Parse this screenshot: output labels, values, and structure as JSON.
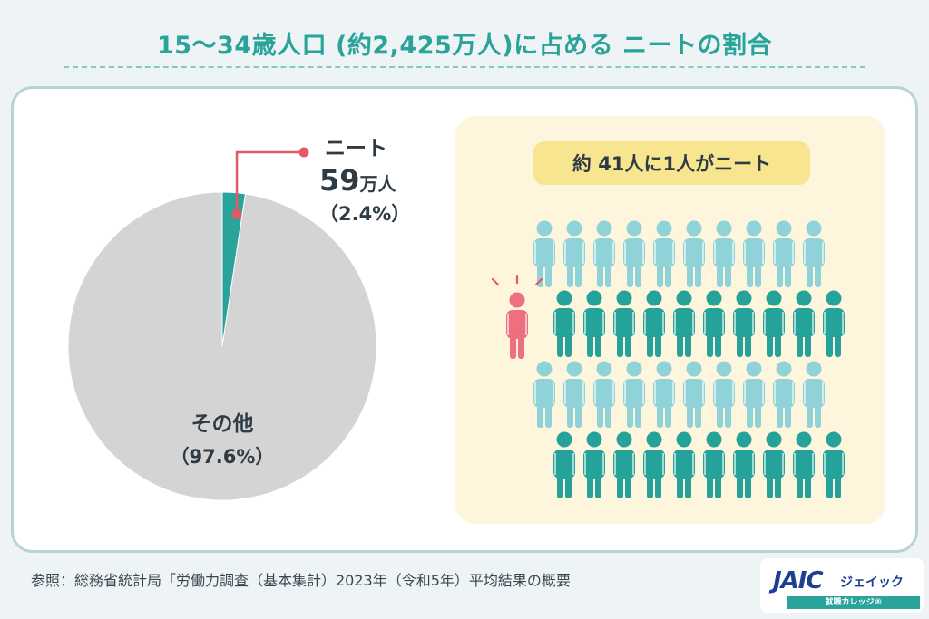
{
  "title": "15〜34歳人口 (約2,425万人)に占める ニートの割合",
  "colors": {
    "accent": "#2aa39a",
    "neet_slice": "#2aa39a",
    "other_slice": "#d4d4d4",
    "pointer": "#e25a63",
    "person_light": "#8fd3d9",
    "person_dark": "#25a39b",
    "person_highlight": "#ee6f80",
    "panel_bg": "#fdf6dd",
    "badge_bg": "#f8e58f"
  },
  "chart_data": [
    {
      "type": "pie",
      "labels": [
        "ニート",
        "その他"
      ],
      "values": [
        2.4,
        97.6
      ],
      "annotations": {
        "neet": {
          "name": "ニート",
          "value_number": "59",
          "value_unit": "万人",
          "percent": "（2.4%）"
        },
        "other": {
          "name": "その他",
          "percent": "（97.6%）"
        }
      }
    },
    {
      "type": "pictogram",
      "headline": "約 41人に1人がニート",
      "rows": [
        {
          "count": 10,
          "color": "light"
        },
        {
          "count": 1,
          "color": "highlight",
          "then": {
            "count": 10,
            "color": "dark"
          }
        },
        {
          "count": 10,
          "color": "light"
        },
        {
          "count": 10,
          "color": "dark"
        }
      ],
      "total_people": 41,
      "highlighted_people": 1
    }
  ],
  "source": "参照：総務省統計局「労働力調査（基本集計）2023年（令和5年）平均結果の概要",
  "logo": {
    "brand": "JAIC",
    "kana": "ジェイック",
    "tagline": "就職カレッジ®"
  }
}
